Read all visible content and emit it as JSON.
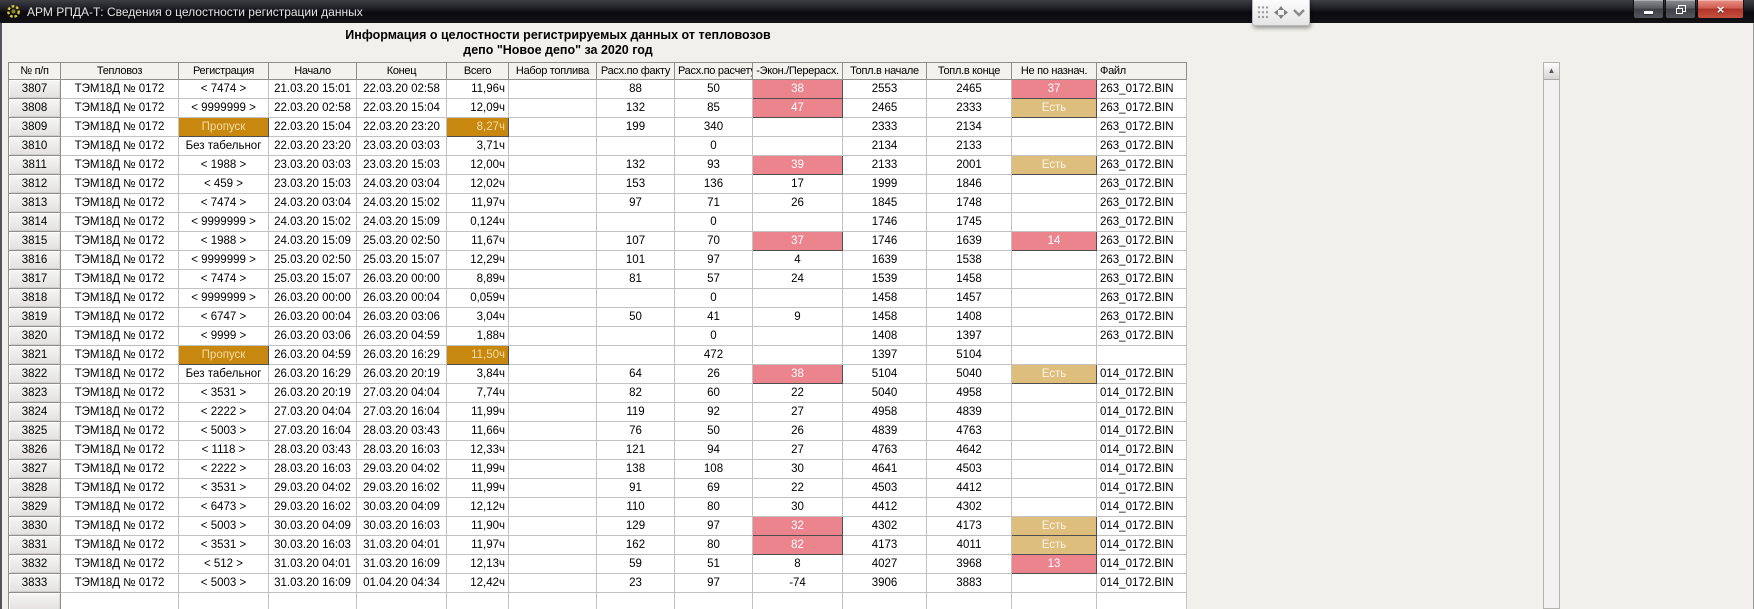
{
  "window": {
    "title": "АРМ РПДА-Т: Сведения о целостности регистрации данных",
    "close_glyph": "×",
    "icons": {
      "app": "gear-flower-icon",
      "minimize": "minimize-icon",
      "restore": "restore-icon",
      "close": "close-icon",
      "drag_handle": "dot-grid-icon",
      "expand": "expand-arrows-icon",
      "collapse": "chevron-down-icon",
      "scroll_up": "arrow-up-icon"
    }
  },
  "report": {
    "title_line1": "Информация о целостности регистрируемых данных от тепловозов",
    "title_line2": "депо \"Новое депо\" за 2020 год"
  },
  "colors": {
    "badge_red": "#ec848d",
    "badge_tan": "#ddbe7c",
    "badge_orange": "#c8870e",
    "titlebar": "#17171c"
  },
  "scrollbar": {
    "up_glyph": "▲"
  },
  "table": {
    "columns": [
      "№ п/п",
      "Тепловоз",
      "Регистрация",
      "Начало",
      "Конец",
      "Всего",
      "Набор топлива",
      "Расх.по факту",
      "Расх.по расчету",
      "-Экон./Перерасх.",
      "Топл.в начале",
      "Топл.в конце",
      "Не по назнач.",
      "Файл"
    ],
    "keys": [
      "num",
      "loco",
      "registration",
      "start",
      "end",
      "total",
      "fuel-load",
      "consumption-fact",
      "consumption-calc",
      "econ-overrun",
      "fuel-begin",
      "fuel-end",
      "misuse",
      "file"
    ],
    "rows": [
      {
        "num": "3807",
        "cells": [
          "ТЭМ18Д № 0172",
          "< 7474 >",
          "21.03.20 15:01",
          "22.03.20 02:58",
          "11,96ч",
          "",
          "88",
          "50",
          {
            "v": "38",
            "s": "red"
          },
          "2553",
          "2465",
          {
            "v": "37",
            "s": "red"
          },
          "263_0172.BIN"
        ]
      },
      {
        "num": "3808",
        "cells": [
          "ТЭМ18Д № 0172",
          "< 9999999 >",
          "22.03.20 02:58",
          "22.03.20 15:04",
          "12,09ч",
          "",
          "132",
          "85",
          {
            "v": "47",
            "s": "red"
          },
          "2465",
          "2333",
          {
            "v": "Есть",
            "s": "tan"
          },
          "263_0172.BIN"
        ]
      },
      {
        "num": "3809",
        "cells": [
          "ТЭМ18Д № 0172",
          {
            "v": "Пропуск",
            "s": "orange"
          },
          "22.03.20 15:04",
          "22.03.20 23:20",
          {
            "v": "8,27ч",
            "s": "orange"
          },
          "",
          "199",
          "340",
          "",
          "2333",
          "2134",
          "",
          "263_0172.BIN"
        ]
      },
      {
        "num": "3810",
        "cells": [
          "ТЭМ18Д № 0172",
          "Без табельног",
          "22.03.20 23:20",
          "23.03.20 03:03",
          "3,71ч",
          "",
          "",
          "0",
          "",
          "2134",
          "2133",
          "",
          "263_0172.BIN"
        ]
      },
      {
        "num": "3811",
        "cells": [
          "ТЭМ18Д № 0172",
          "< 1988 >",
          "23.03.20 03:03",
          "23.03.20 15:03",
          "12,00ч",
          "",
          "132",
          "93",
          {
            "v": "39",
            "s": "red"
          },
          "2133",
          "2001",
          {
            "v": "Есть",
            "s": "tan"
          },
          "263_0172.BIN"
        ]
      },
      {
        "num": "3812",
        "cells": [
          "ТЭМ18Д № 0172",
          "< 459 >",
          "23.03.20 15:03",
          "24.03.20 03:04",
          "12,02ч",
          "",
          "153",
          "136",
          "17",
          "1999",
          "1846",
          "",
          "263_0172.BIN"
        ]
      },
      {
        "num": "3813",
        "cells": [
          "ТЭМ18Д № 0172",
          "< 7474 >",
          "24.03.20 03:04",
          "24.03.20 15:02",
          "11,97ч",
          "",
          "97",
          "71",
          "26",
          "1845",
          "1748",
          "",
          "263_0172.BIN"
        ]
      },
      {
        "num": "3814",
        "cells": [
          "ТЭМ18Д № 0172",
          "< 9999999 >",
          "24.03.20 15:02",
          "24.03.20 15:09",
          "0,124ч",
          "",
          "",
          "0",
          "",
          "1746",
          "1745",
          "",
          "263_0172.BIN"
        ]
      },
      {
        "num": "3815",
        "cells": [
          "ТЭМ18Д № 0172",
          "< 1988 >",
          "24.03.20 15:09",
          "25.03.20 02:50",
          "11,67ч",
          "",
          "107",
          "70",
          {
            "v": "37",
            "s": "red"
          },
          "1746",
          "1639",
          {
            "v": "14",
            "s": "red"
          },
          "263_0172.BIN"
        ]
      },
      {
        "num": "3816",
        "cells": [
          "ТЭМ18Д № 0172",
          "< 9999999 >",
          "25.03.20 02:50",
          "25.03.20 15:07",
          "12,29ч",
          "",
          "101",
          "97",
          "4",
          "1639",
          "1538",
          "",
          "263_0172.BIN"
        ]
      },
      {
        "num": "3817",
        "cells": [
          "ТЭМ18Д № 0172",
          "< 7474 >",
          "25.03.20 15:07",
          "26.03.20 00:00",
          "8,89ч",
          "",
          "81",
          "57",
          "24",
          "1539",
          "1458",
          "",
          "263_0172.BIN"
        ]
      },
      {
        "num": "3818",
        "cells": [
          "ТЭМ18Д № 0172",
          "< 9999999 >",
          "26.03.20 00:00",
          "26.03.20 00:04",
          "0,059ч",
          "",
          "",
          "0",
          "",
          "1458",
          "1457",
          "",
          "263_0172.BIN"
        ]
      },
      {
        "num": "3819",
        "cells": [
          "ТЭМ18Д № 0172",
          "< 6747 >",
          "26.03.20 00:04",
          "26.03.20 03:06",
          "3,04ч",
          "",
          "50",
          "41",
          "9",
          "1458",
          "1408",
          "",
          "263_0172.BIN"
        ]
      },
      {
        "num": "3820",
        "cells": [
          "ТЭМ18Д № 0172",
          "< 9999 >",
          "26.03.20 03:06",
          "26.03.20 04:59",
          "1,88ч",
          "",
          "",
          "0",
          "",
          "1408",
          "1397",
          "",
          "263_0172.BIN"
        ]
      },
      {
        "num": "3821",
        "cells": [
          "ТЭМ18Д № 0172",
          {
            "v": "Пропуск",
            "s": "orange"
          },
          "26.03.20 04:59",
          "26.03.20 16:29",
          {
            "v": "11,50ч",
            "s": "orange"
          },
          "",
          "",
          "472",
          "",
          "1397",
          "5104",
          "",
          ""
        ]
      },
      {
        "num": "3822",
        "cells": [
          "ТЭМ18Д № 0172",
          "Без табельног",
          "26.03.20 16:29",
          "26.03.20 20:19",
          "3,84ч",
          "",
          "64",
          "26",
          {
            "v": "38",
            "s": "red"
          },
          "5104",
          "5040",
          {
            "v": "Есть",
            "s": "tan"
          },
          "014_0172.BIN"
        ]
      },
      {
        "num": "3823",
        "cells": [
          "ТЭМ18Д № 0172",
          "< 3531 >",
          "26.03.20 20:19",
          "27.03.20 04:04",
          "7,74ч",
          "",
          "82",
          "60",
          "22",
          "5040",
          "4958",
          "",
          "014_0172.BIN"
        ]
      },
      {
        "num": "3824",
        "cells": [
          "ТЭМ18Д № 0172",
          "< 2222 >",
          "27.03.20 04:04",
          "27.03.20 16:04",
          "11,99ч",
          "",
          "119",
          "92",
          "27",
          "4958",
          "4839",
          "",
          "014_0172.BIN"
        ]
      },
      {
        "num": "3825",
        "cells": [
          "ТЭМ18Д № 0172",
          "< 5003 >",
          "27.03.20 16:04",
          "28.03.20 03:43",
          "11,66ч",
          "",
          "76",
          "50",
          "26",
          "4839",
          "4763",
          "",
          "014_0172.BIN"
        ]
      },
      {
        "num": "3826",
        "cells": [
          "ТЭМ18Д № 0172",
          "< 1118 >",
          "28.03.20 03:43",
          "28.03.20 16:03",
          "12,33ч",
          "",
          "121",
          "94",
          "27",
          "4763",
          "4642",
          "",
          "014_0172.BIN"
        ]
      },
      {
        "num": "3827",
        "cells": [
          "ТЭМ18Д № 0172",
          "< 2222 >",
          "28.03.20 16:03",
          "29.03.20 04:02",
          "11,99ч",
          "",
          "138",
          "108",
          "30",
          "4641",
          "4503",
          "",
          "014_0172.BIN"
        ]
      },
      {
        "num": "3828",
        "cells": [
          "ТЭМ18Д № 0172",
          "< 3531 >",
          "29.03.20 04:02",
          "29.03.20 16:02",
          "11,99ч",
          "",
          "91",
          "69",
          "22",
          "4503",
          "4412",
          "",
          "014_0172.BIN"
        ]
      },
      {
        "num": "3829",
        "cells": [
          "ТЭМ18Д № 0172",
          "< 6473 >",
          "29.03.20 16:02",
          "30.03.20 04:09",
          "12,12ч",
          "",
          "110",
          "80",
          "30",
          "4412",
          "4302",
          "",
          "014_0172.BIN"
        ]
      },
      {
        "num": "3830",
        "cells": [
          "ТЭМ18Д № 0172",
          "< 5003 >",
          "30.03.20 04:09",
          "30.03.20 16:03",
          "11,90ч",
          "",
          "129",
          "97",
          {
            "v": "32",
            "s": "red"
          },
          "4302",
          "4173",
          {
            "v": "Есть",
            "s": "tan"
          },
          "014_0172.BIN"
        ]
      },
      {
        "num": "3831",
        "cells": [
          "ТЭМ18Д № 0172",
          "< 3531 >",
          "30.03.20 16:03",
          "31.03.20 04:01",
          "11,97ч",
          "",
          "162",
          "80",
          {
            "v": "82",
            "s": "red"
          },
          "4173",
          "4011",
          {
            "v": "Есть",
            "s": "tan"
          },
          "014_0172.BIN"
        ]
      },
      {
        "num": "3832",
        "cells": [
          "ТЭМ18Д № 0172",
          "< 512 >",
          "31.03.20 04:01",
          "31.03.20 16:09",
          "12,13ч",
          "",
          "59",
          "51",
          "8",
          "4027",
          "3968",
          {
            "v": "13",
            "s": "red"
          },
          "014_0172.BIN"
        ]
      },
      {
        "num": "3833",
        "cells": [
          "ТЭМ18Д № 0172",
          "< 5003 >",
          "31.03.20 16:09",
          "01.04.20 04:34",
          "12,42ч",
          "",
          "23",
          "97",
          "-74",
          "3906",
          "3883",
          "",
          "014_0172.BIN"
        ]
      }
    ]
  }
}
